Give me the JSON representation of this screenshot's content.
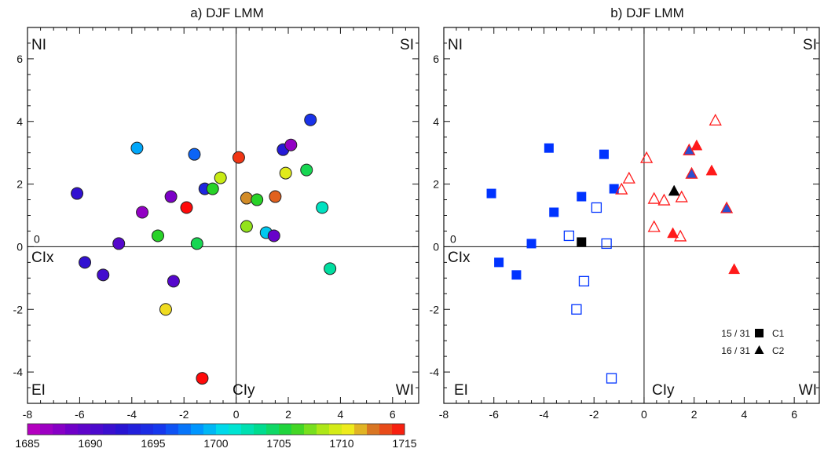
{
  "chart_data": [
    {
      "type": "scatter",
      "title": "a)  DJF LMM",
      "xlim": [
        -8,
        7
      ],
      "ylim": [
        -5,
        7
      ],
      "x_ticks": [
        -8,
        -6,
        -4,
        -2,
        0,
        2,
        4,
        6
      ],
      "y_ticks": [
        -4,
        -2,
        0,
        2,
        4,
        6
      ],
      "quadrant_labels": [
        "NI",
        "SI",
        "CIx",
        "EI",
        "CIy",
        "WI"
      ],
      "marker": "circle colored by year",
      "colorbar": {
        "min": 1685,
        "max": 1715,
        "ticks": [
          1685,
          1690,
          1695,
          1700,
          1705,
          1710,
          1715
        ]
      },
      "points": [
        {
          "x": -6.1,
          "y": 1.7,
          "year": 1692
        },
        {
          "x": -3.8,
          "y": 3.15,
          "year": 1699
        },
        {
          "x": -1.6,
          "y": 2.95,
          "year": 1697
        },
        {
          "x": -3.6,
          "y": 1.1,
          "year": 1687
        },
        {
          "x": -2.5,
          "y": 1.6,
          "year": 1688
        },
        {
          "x": -1.2,
          "y": 1.85,
          "year": 1694
        },
        {
          "x": -0.9,
          "y": 1.85,
          "year": 1706
        },
        {
          "x": -0.6,
          "y": 2.2,
          "year": 1709
        },
        {
          "x": -1.9,
          "y": 1.25,
          "year": 1715
        },
        {
          "x": -3.0,
          "y": 0.35,
          "year": 1706
        },
        {
          "x": -4.5,
          "y": 0.1,
          "year": 1690
        },
        {
          "x": -1.5,
          "y": 0.1,
          "year": 1705
        },
        {
          "x": -5.8,
          "y": -0.5,
          "year": 1692
        },
        {
          "x": -5.1,
          "y": -0.9,
          "year": 1691
        },
        {
          "x": -2.4,
          "y": -1.1,
          "year": 1690
        },
        {
          "x": -2.7,
          "y": -2.0,
          "year": 1711
        },
        {
          "x": -1.3,
          "y": -4.2,
          "year": 1715
        },
        {
          "x": 2.85,
          "y": 4.05,
          "year": 1695
        },
        {
          "x": 1.8,
          "y": 3.1,
          "year": 1693
        },
        {
          "x": 2.1,
          "y": 3.25,
          "year": 1687
        },
        {
          "x": 0.1,
          "y": 2.85,
          "year": 1714
        },
        {
          "x": 1.9,
          "y": 2.35,
          "year": 1710
        },
        {
          "x": 2.7,
          "y": 2.45,
          "year": 1705
        },
        {
          "x": 0.4,
          "y": 1.55,
          "year": 1712
        },
        {
          "x": 0.8,
          "y": 1.5,
          "year": 1706
        },
        {
          "x": 1.5,
          "y": 1.6,
          "year": 1713
        },
        {
          "x": 3.3,
          "y": 1.25,
          "year": 1702
        },
        {
          "x": 0.4,
          "y": 0.65,
          "year": 1708
        },
        {
          "x": 1.15,
          "y": 0.45,
          "year": 1700
        },
        {
          "x": 1.45,
          "y": 0.35,
          "year": 1689
        },
        {
          "x": 3.6,
          "y": -0.7,
          "year": 1703
        }
      ]
    },
    {
      "type": "scatter",
      "title": "b)  DJF LMM",
      "xlim": [
        -8,
        7
      ],
      "ylim": [
        -5,
        7
      ],
      "x_ticks": [
        -8,
        -6,
        -4,
        -2,
        0,
        2,
        4,
        6
      ],
      "y_ticks": [
        -4,
        -2,
        0,
        2,
        4,
        6
      ],
      "quadrant_labels": [
        "NI",
        "SI",
        "CIx",
        "EI",
        "CIy",
        "WI"
      ],
      "legend": {
        "position": "bottom-right",
        "entries": [
          {
            "count": "15 / 31",
            "symbol": "square",
            "label": "C1"
          },
          {
            "count": "16 / 31",
            "symbol": "triangle",
            "label": "C2"
          }
        ]
      },
      "points": [
        {
          "x": -6.1,
          "y": 1.7,
          "symbol": "square",
          "color": "#0033ff",
          "filled": true
        },
        {
          "x": -3.8,
          "y": 3.15,
          "symbol": "square",
          "color": "#0033ff",
          "filled": true
        },
        {
          "x": -1.6,
          "y": 2.95,
          "symbol": "square",
          "color": "#0033ff",
          "filled": true
        },
        {
          "x": -3.6,
          "y": 1.1,
          "symbol": "square",
          "color": "#0033ff",
          "filled": true
        },
        {
          "x": -2.5,
          "y": 1.6,
          "symbol": "square",
          "color": "#0033ff",
          "filled": true
        },
        {
          "x": -1.2,
          "y": 1.85,
          "symbol": "square",
          "color": "#0033ff",
          "filled": true
        },
        {
          "x": -4.5,
          "y": 0.1,
          "symbol": "square",
          "color": "#0033ff",
          "filled": true
        },
        {
          "x": -5.8,
          "y": -0.5,
          "symbol": "square",
          "color": "#0033ff",
          "filled": true
        },
        {
          "x": -5.1,
          "y": -0.9,
          "symbol": "square",
          "color": "#0033ff",
          "filled": true
        },
        {
          "x": -2.5,
          "y": 0.15,
          "symbol": "square",
          "color": "#000000",
          "filled": true
        },
        {
          "x": -1.9,
          "y": 1.25,
          "symbol": "square",
          "color": "#0033ff",
          "filled": false
        },
        {
          "x": -3.0,
          "y": 0.35,
          "symbol": "square",
          "color": "#0033ff",
          "filled": false
        },
        {
          "x": -1.5,
          "y": 0.1,
          "symbol": "square",
          "color": "#0033ff",
          "filled": false
        },
        {
          "x": -2.4,
          "y": -1.1,
          "symbol": "square",
          "color": "#0033ff",
          "filled": false
        },
        {
          "x": -2.7,
          "y": -2.0,
          "symbol": "square",
          "color": "#0033ff",
          "filled": false
        },
        {
          "x": -1.3,
          "y": -4.2,
          "symbol": "square",
          "color": "#0033ff",
          "filled": false
        },
        {
          "x": -0.9,
          "y": 1.85,
          "symbol": "triangle",
          "color": "#ff1a1a",
          "filled": false
        },
        {
          "x": -0.6,
          "y": 2.2,
          "symbol": "triangle",
          "color": "#ff1a1a",
          "filled": false
        },
        {
          "x": 2.85,
          "y": 4.05,
          "symbol": "triangle",
          "color": "#ff1a1a",
          "filled": false
        },
        {
          "x": 0.1,
          "y": 2.85,
          "symbol": "triangle",
          "color": "#ff1a1a",
          "filled": false
        },
        {
          "x": 0.4,
          "y": 1.55,
          "symbol": "triangle",
          "color": "#ff1a1a",
          "filled": false
        },
        {
          "x": 0.8,
          "y": 1.5,
          "symbol": "triangle",
          "color": "#ff1a1a",
          "filled": false
        },
        {
          "x": 1.5,
          "y": 1.6,
          "symbol": "triangle",
          "color": "#ff1a1a",
          "filled": false
        },
        {
          "x": 0.4,
          "y": 0.65,
          "symbol": "triangle",
          "color": "#ff1a1a",
          "filled": false
        },
        {
          "x": 1.45,
          "y": 0.35,
          "symbol": "triangle",
          "color": "#ff1a1a",
          "filled": false
        },
        {
          "x": 1.8,
          "y": 3.1,
          "symbol": "triangle",
          "color": "#2a4fd0",
          "filled": true,
          "edge": "#ff1a1a"
        },
        {
          "x": 1.9,
          "y": 2.35,
          "symbol": "triangle",
          "color": "#2a4fd0",
          "filled": true,
          "edge": "#ff1a1a"
        },
        {
          "x": 3.3,
          "y": 1.25,
          "symbol": "triangle",
          "color": "#2a4fd0",
          "filled": true,
          "edge": "#ff1a1a"
        },
        {
          "x": 2.1,
          "y": 3.25,
          "symbol": "triangle",
          "color": "#ff1a1a",
          "filled": true
        },
        {
          "x": 2.7,
          "y": 2.45,
          "symbol": "triangle",
          "color": "#ff1a1a",
          "filled": true
        },
        {
          "x": 1.15,
          "y": 0.45,
          "symbol": "triangle",
          "color": "#ff1a1a",
          "filled": true
        },
        {
          "x": 3.6,
          "y": -0.7,
          "symbol": "triangle",
          "color": "#ff1a1a",
          "filled": true
        },
        {
          "x": 1.2,
          "y": 1.8,
          "symbol": "triangle",
          "color": "#000000",
          "filled": true
        }
      ]
    }
  ]
}
